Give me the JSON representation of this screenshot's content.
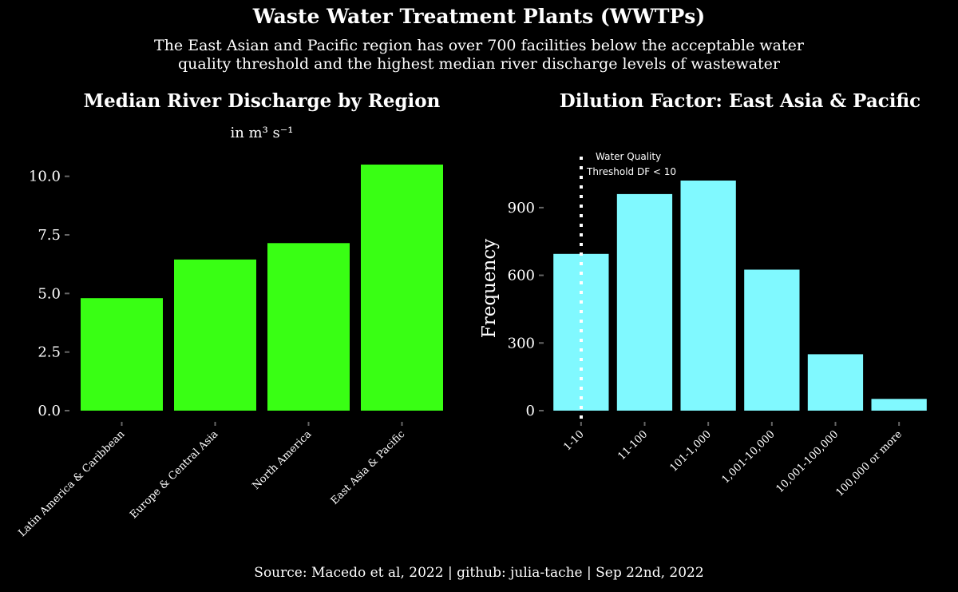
{
  "title": "Waste Water Treatment Plants (WWTPs)",
  "subtitle_lines": [
    "The East Asian and Pacific region has over 700 facilities below the acceptable water",
    "quality threshold and the highest median river discharge levels of wastewater"
  ],
  "footer": "Source: Macedo et al, 2022 | github: julia-tache | Sep 22nd, 2022",
  "colors": {
    "background": "#000000",
    "text": "#ffffff",
    "bar_left": "#39ff14",
    "bar_right": "#80f9ff"
  },
  "chart_data": [
    {
      "type": "bar",
      "title": "Median River Discharge by Region",
      "subtitle": "in m³ s⁻¹",
      "xlabel": "",
      "ylabel": "",
      "categories": [
        "Latin America & Caribbean",
        "Europe & Central Asia",
        "North America",
        "East Asia & Pacific"
      ],
      "values": [
        4.8,
        6.45,
        7.15,
        10.5
      ],
      "ylim": [
        0,
        10.5
      ],
      "yticks": [
        "0.0",
        "2.5",
        "5.0",
        "7.5",
        "10.0"
      ],
      "ytick_values": [
        0,
        2.5,
        5,
        7.5,
        10
      ],
      "grid": false,
      "color": "#39ff14"
    },
    {
      "type": "bar",
      "title": "Dilution Factor: East Asia & Pacific",
      "xlabel": "",
      "ylabel": "Frequency",
      "categories": [
        "1-10",
        "11-100",
        "101-1,000",
        "1,001-10,000",
        "10,001-100,000",
        "100,000 or more"
      ],
      "values": [
        695,
        960,
        1020,
        625,
        250,
        52
      ],
      "ylim": [
        0,
        1020
      ],
      "yticks": [
        "0",
        "300",
        "600",
        "900"
      ],
      "ytick_values": [
        0,
        300,
        600,
        900
      ],
      "grid": false,
      "color": "#80f9ff",
      "annotation": {
        "lines": [
          "Water Quality",
          "Threshold DF < 10"
        ],
        "at_category": "1-10",
        "style": "dotted vertical line"
      }
    }
  ]
}
